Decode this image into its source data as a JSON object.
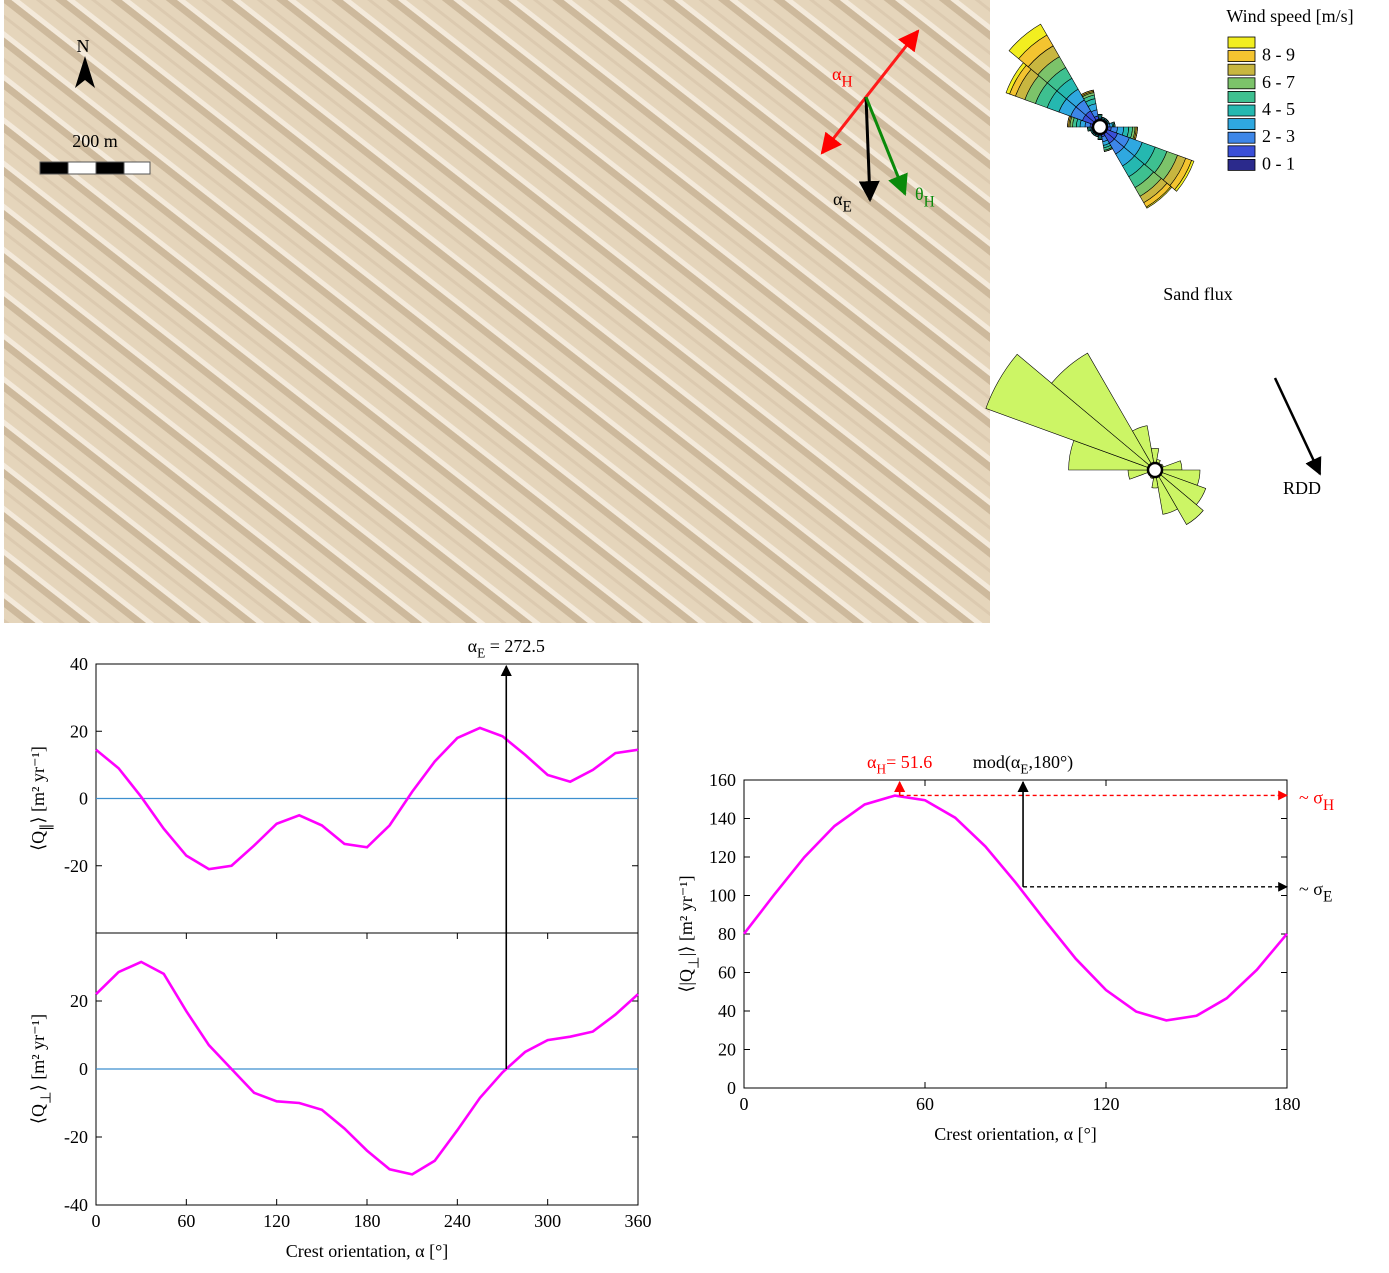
{
  "photo": {
    "north": "N",
    "scale": "200 m",
    "alpha_h": [
      "α",
      {
        "sub": "H"
      }
    ],
    "alpha_e": [
      "α",
      {
        "sub": "E"
      }
    ],
    "theta_h": [
      "θ",
      {
        "sub": "H"
      }
    ]
  },
  "chart_data": [
    {
      "type": "rose",
      "legend_title": "Wind speed [m/s]",
      "rlim": [
        0,
        10
      ],
      "directions": [
        0,
        20,
        40,
        60,
        80,
        100,
        120,
        140,
        160,
        180,
        200,
        220,
        240,
        260,
        280,
        300,
        320,
        340
      ],
      "series": [
        {
          "name": "0 - 1",
          "color": "#2b2a8c",
          "values": [
            0.3,
            0.3,
            0.3,
            0.3,
            0.3,
            0.4,
            0.6,
            0.6,
            0.4,
            0.3,
            0.3,
            0.3,
            0.3,
            0.3,
            0.4,
            0.6,
            0.6,
            0.4
          ]
        },
        {
          "name": null,
          "color": "#3a4fd8",
          "values": [
            0.2,
            0.2,
            0.2,
            0.2,
            0.3,
            0.5,
            0.9,
            0.9,
            0.4,
            0.2,
            0.2,
            0.2,
            0.2,
            0.2,
            0.4,
            0.9,
            0.9,
            0.5
          ]
        },
        {
          "name": "2 - 3",
          "color": "#3d86e8",
          "values": [
            0.2,
            0.1,
            0.1,
            0.1,
            0.2,
            0.5,
            1.0,
            1.0,
            0.4,
            0.2,
            0.1,
            0.1,
            0.1,
            0.2,
            0.4,
            1.0,
            1.0,
            0.5
          ]
        },
        {
          "name": null,
          "color": "#2fa8e0",
          "values": [
            0.1,
            0.1,
            0.1,
            0.1,
            0.2,
            0.5,
            1.1,
            1.1,
            0.3,
            0.1,
            0.1,
            0.1,
            0.1,
            0.1,
            0.4,
            1.0,
            1.0,
            0.5
          ]
        },
        {
          "name": "4 - 5",
          "color": "#25b8b0",
          "values": [
            0.1,
            0.1,
            0.1,
            0.1,
            0.1,
            0.4,
            1.1,
            1.0,
            0.2,
            0.1,
            0.1,
            0.1,
            0.1,
            0.1,
            0.3,
            1.0,
            1.0,
            0.4
          ]
        },
        {
          "name": null,
          "color": "#3ec090",
          "values": [
            0.1,
            0,
            0,
            0,
            0.1,
            0.3,
            1.0,
            1.0,
            0.2,
            0.1,
            0,
            0,
            0,
            0.1,
            0.3,
            1.0,
            1.0,
            0.3
          ]
        },
        {
          "name": "6 - 7",
          "color": "#7cc36a",
          "values": [
            0,
            0,
            0,
            0,
            0,
            0.2,
            0.9,
            0.8,
            0.1,
            0,
            0,
            0,
            0,
            0,
            0.2,
            0.9,
            1.0,
            0.2
          ]
        },
        {
          "name": null,
          "color": "#c8b640",
          "values": [
            0,
            0,
            0,
            0,
            0,
            0.1,
            0.7,
            0.6,
            0,
            0,
            0,
            0,
            0,
            0,
            0.1,
            0.8,
            1.0,
            0.1
          ]
        },
        {
          "name": "8 - 9",
          "color": "#f4c430",
          "values": [
            0,
            0,
            0,
            0,
            0,
            0.1,
            0.5,
            0.4,
            0,
            0,
            0,
            0,
            0,
            0,
            0.1,
            0.5,
            1.0,
            0.1
          ]
        },
        {
          "name": null,
          "color": "#f2ee20",
          "values": [
            0,
            0,
            0,
            0,
            0,
            0,
            0.2,
            0.1,
            0,
            0,
            0,
            0,
            0,
            0,
            0,
            0.3,
            1.0,
            0
          ]
        }
      ]
    },
    {
      "type": "rose",
      "title": "Sand flux",
      "annotation": "RDD",
      "rlim": [
        0,
        10
      ],
      "color": "#ccf565",
      "directions": [
        0,
        20,
        40,
        60,
        80,
        100,
        120,
        140,
        160,
        180,
        200,
        220,
        240,
        260,
        280,
        300,
        320,
        340
      ],
      "values": [
        1.2,
        0.6,
        0.4,
        0.5,
        1.5,
        2.5,
        3,
        3.5,
        2.5,
        1,
        0.5,
        0.4,
        0.4,
        1.5,
        4.8,
        10,
        7.5,
        2.5
      ]
    },
    {
      "type": "line",
      "color": "#ff00ff",
      "xlim": [
        0,
        360
      ],
      "ylim": [
        -40,
        40
      ],
      "yticks": [
        40,
        20,
        0,
        -20
      ],
      "hlines": [
        0
      ],
      "hline_color": "#3d8fcf",
      "ylabel": [
        "⟨Q",
        {
          "sub": "∥"
        },
        "⟩   [m² yr⁻¹]"
      ],
      "x": [
        0,
        15,
        30,
        45,
        60,
        75,
        90,
        105,
        120,
        135,
        150,
        165,
        180,
        195,
        210,
        225,
        240,
        255,
        270,
        285,
        300,
        315,
        330,
        345,
        360
      ],
      "values": [
        14.5,
        9,
        0.5,
        -9,
        -17,
        -21,
        -20,
        -14,
        -7.5,
        -5,
        -8,
        -13.5,
        -14.5,
        -8,
        2,
        11,
        18,
        21,
        18.5,
        13,
        7,
        5,
        8.5,
        13.5,
        14.5
      ]
    },
    {
      "type": "line",
      "color": "#ff00ff",
      "xlim": [
        0,
        360
      ],
      "ylim": [
        -40,
        40
      ],
      "yticks": [
        20,
        0,
        -20,
        -40
      ],
      "xticks": [
        0,
        60,
        120,
        180,
        240,
        300,
        360
      ],
      "hlines": [
        0
      ],
      "hline_color": "#3d8fcf",
      "xlabel": "Crest orientation, α [°]",
      "ylabel": [
        "⟨Q",
        {
          "sub": "⊥"
        },
        "⟩   [m² yr⁻¹]"
      ],
      "x": [
        0,
        15,
        30,
        45,
        60,
        75,
        90,
        105,
        120,
        135,
        150,
        165,
        180,
        195,
        210,
        225,
        240,
        255,
        270,
        285,
        300,
        315,
        330,
        345,
        360
      ],
      "values": [
        22,
        28.5,
        31.5,
        28,
        17,
        7,
        0,
        -7,
        -9.5,
        -10,
        -12,
        -17.5,
        -24,
        -29.5,
        -31,
        -27,
        -18,
        -8.5,
        -1,
        5,
        8.5,
        9.5,
        11,
        16,
        22
      ],
      "annotations": [
        {
          "label": [
            "α",
            {
              "sub": "E"
            },
            " = 272.5"
          ],
          "x": 272.5,
          "y": 0,
          "color": "#000000"
        }
      ]
    },
    {
      "type": "line",
      "color": "#ff00ff",
      "xlim": [
        0,
        180
      ],
      "ylim": [
        0,
        160
      ],
      "xticks": [
        0,
        60,
        120,
        180
      ],
      "yticks": [
        0,
        20,
        40,
        60,
        80,
        100,
        120,
        140,
        160
      ],
      "xlabel": "Crest orientation, α [°]",
      "ylabel": [
        "⟨|Q",
        {
          "sub": "⊥"
        },
        "|⟩   [m² yr⁻¹]"
      ],
      "x": [
        0,
        10,
        20,
        30,
        40,
        50,
        60,
        70,
        80,
        90,
        100,
        110,
        120,
        130,
        140,
        150,
        160,
        170,
        180
      ],
      "values": [
        80.1,
        100.4,
        119.9,
        136.1,
        147.3,
        151.9,
        149.5,
        140.4,
        125.5,
        106.8,
        86.6,
        67.1,
        50.9,
        39.7,
        35.1,
        37.5,
        46.6,
        61.4,
        80.1
      ],
      "annotations": [
        {
          "label": [
            "α",
            {
              "sub": "H"
            },
            "= 51.6"
          ],
          "x": 51.6,
          "y": 152,
          "color": "#ff0000",
          "level_label": [
            "~ σ",
            {
              "sub": "H"
            }
          ]
        },
        {
          "label": [
            "mod(α",
            {
              "sub": "E"
            },
            ",180°)"
          ],
          "x": 92.5,
          "y": 104.5,
          "color": "#000000",
          "level_label": [
            "~ σ",
            {
              "sub": "E"
            }
          ]
        }
      ]
    }
  ]
}
